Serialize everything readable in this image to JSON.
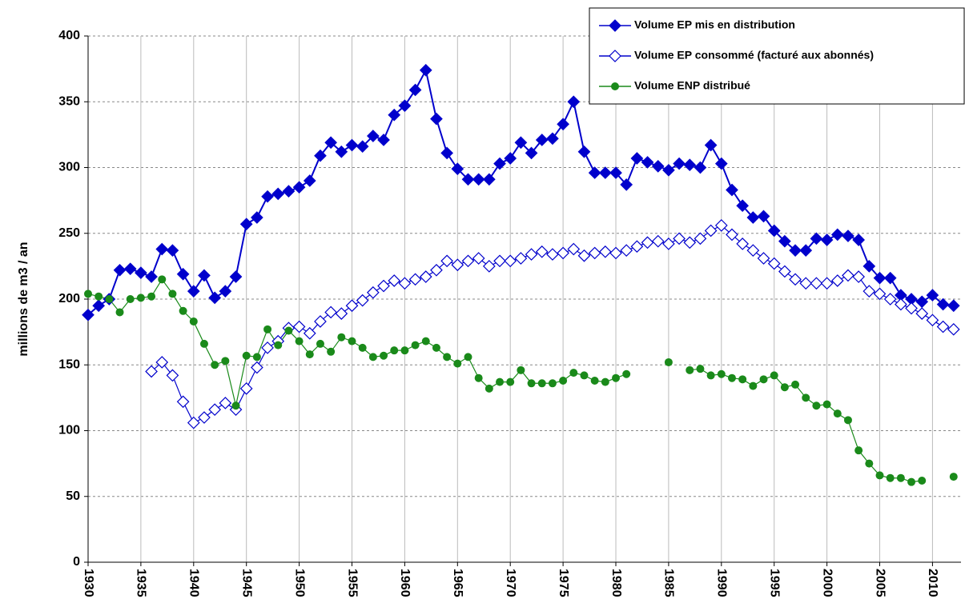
{
  "chart_data": {
    "type": "line",
    "y_label": "millions de m3 / an",
    "x": [
      1930,
      1931,
      1932,
      1933,
      1934,
      1935,
      1936,
      1937,
      1938,
      1939,
      1940,
      1941,
      1942,
      1943,
      1944,
      1945,
      1946,
      1947,
      1948,
      1949,
      1950,
      1951,
      1952,
      1953,
      1954,
      1955,
      1956,
      1957,
      1958,
      1959,
      1960,
      1961,
      1962,
      1963,
      1964,
      1965,
      1966,
      1967,
      1968,
      1969,
      1970,
      1971,
      1972,
      1973,
      1974,
      1975,
      1976,
      1977,
      1978,
      1979,
      1980,
      1981,
      1982,
      1983,
      1984,
      1985,
      1986,
      1987,
      1988,
      1989,
      1990,
      1991,
      1992,
      1993,
      1994,
      1995,
      1996,
      1997,
      1998,
      1999,
      2000,
      2001,
      2002,
      2003,
      2004,
      2005,
      2006,
      2007,
      2008,
      2009,
      2010,
      2011,
      2012
    ],
    "series": [
      {
        "name": "Volume EP mis en distribution",
        "color": "#0000cc",
        "marker": "filled-diamond",
        "values": [
          188,
          195,
          200,
          222,
          223,
          220,
          217,
          238,
          237,
          219,
          206,
          218,
          201,
          206,
          217,
          257,
          262,
          278,
          280,
          282,
          285,
          290,
          309,
          319,
          312,
          317,
          316,
          324,
          321,
          340,
          347,
          359,
          374,
          337,
          311,
          299,
          291,
          291,
          291,
          303,
          307,
          319,
          311,
          321,
          322,
          333,
          350,
          312,
          296,
          296,
          296,
          287,
          307,
          304,
          301,
          298,
          303,
          302,
          300,
          317,
          303,
          283,
          271,
          262,
          263,
          252,
          244,
          237,
          237,
          246,
          245,
          249,
          248,
          245,
          225,
          216,
          216,
          203,
          200,
          198,
          203,
          196,
          195
        ]
      },
      {
        "name": "Volume EP consommé (facturé aux abonnés)",
        "color": "#0000cc",
        "marker": "open-diamond",
        "values": [
          null,
          null,
          null,
          null,
          null,
          null,
          145,
          152,
          142,
          122,
          106,
          110,
          116,
          121,
          116,
          132,
          148,
          163,
          168,
          178,
          179,
          174,
          183,
          190,
          189,
          195,
          199,
          205,
          210,
          214,
          212,
          215,
          217,
          222,
          229,
          226,
          229,
          231,
          225,
          229,
          229,
          231,
          234,
          236,
          234,
          235,
          238,
          233,
          235,
          236,
          235,
          237,
          240,
          243,
          244,
          242,
          246,
          243,
          246,
          252,
          256,
          249,
          242,
          237,
          231,
          227,
          221,
          215,
          212,
          212,
          212,
          214,
          218,
          217,
          206,
          204,
          200,
          196,
          193,
          189,
          184,
          179,
          177
        ]
      },
      {
        "name": "Volume ENP distribué",
        "color": "#1a8a1a",
        "marker": "circle",
        "values": [
          204,
          202,
          200,
          190,
          200,
          201,
          202,
          215,
          204,
          191,
          183,
          166,
          150,
          153,
          119,
          157,
          156,
          177,
          165,
          176,
          168,
          158,
          166,
          160,
          171,
          168,
          163,
          156,
          157,
          161,
          161,
          165,
          168,
          163,
          156,
          151,
          156,
          140,
          132,
          137,
          137,
          146,
          136,
          136,
          136,
          138,
          144,
          142,
          138,
          137,
          140,
          143,
          null,
          null,
          null,
          152,
          null,
          146,
          147,
          142,
          143,
          140,
          139,
          134,
          139,
          142,
          133,
          135,
          125,
          119,
          120,
          113,
          108,
          85,
          75,
          66,
          64,
          64,
          61,
          62,
          null,
          null,
          65
        ]
      }
    ],
    "xlim": [
      1930,
      2012.7
    ],
    "xticks": [
      1930,
      1935,
      1940,
      1945,
      1950,
      1955,
      1960,
      1965,
      1970,
      1975,
      1980,
      1985,
      1990,
      1995,
      2000,
      2005,
      2010
    ],
    "ylim": [
      0,
      400
    ],
    "yticks": [
      0,
      50,
      100,
      150,
      200,
      250,
      300,
      350,
      400
    ],
    "grid": true,
    "legend": "top-right"
  }
}
